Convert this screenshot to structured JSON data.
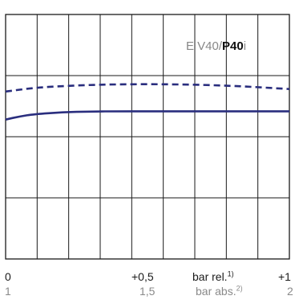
{
  "chart_data": {
    "type": "line",
    "title": "",
    "label": {
      "prefix": "E V40/",
      "bold": "P40",
      "suffix": "i"
    },
    "x_axis_rel": {
      "ticks": [
        "0",
        "+0,5",
        "+1"
      ],
      "unit": "bar rel.",
      "unit_note": "1)"
    },
    "x_axis_abs": {
      "ticks": [
        "1",
        "1,5",
        "2"
      ],
      "unit": "bar abs.",
      "unit_note": "2)"
    },
    "xlim": [
      0,
      1
    ],
    "ylim": [
      0,
      1
    ],
    "grid": true,
    "colors": {
      "series": "#2a2e7e",
      "grid": "#1a1a1a"
    },
    "series": [
      {
        "style": "dashed",
        "x": [
          0,
          0.1,
          0.2,
          0.3,
          0.4,
          0.5,
          0.6,
          0.7,
          0.8,
          0.9,
          1.0
        ],
        "y": [
          0.685,
          0.7,
          0.707,
          0.712,
          0.714,
          0.715,
          0.714,
          0.712,
          0.708,
          0.702,
          0.695
        ]
      },
      {
        "style": "solid",
        "x": [
          0,
          0.05,
          0.1,
          0.2,
          0.3,
          0.4,
          0.5,
          0.6,
          0.7,
          0.8,
          0.9,
          1.0
        ],
        "y": [
          0.57,
          0.583,
          0.592,
          0.6,
          0.603,
          0.604,
          0.604,
          0.604,
          0.604,
          0.604,
          0.604,
          0.604
        ]
      }
    ]
  }
}
